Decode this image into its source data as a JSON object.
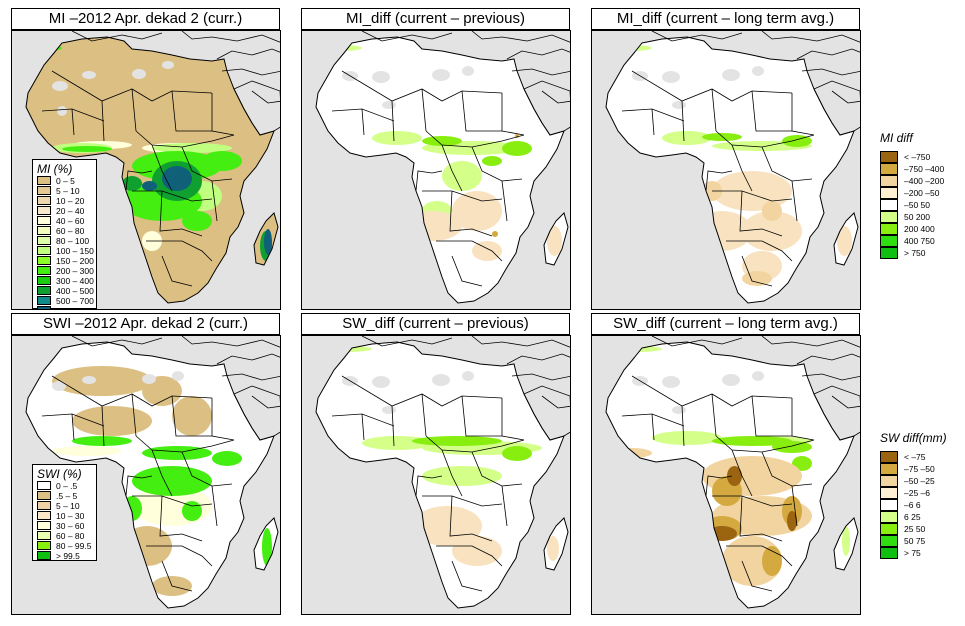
{
  "panels": [
    {
      "id": "mi-curr",
      "title": "MI –2012 Apr. dekad 2 (curr.)",
      "scheme": "mi"
    },
    {
      "id": "mi-diff-prev",
      "title": "MI_diff (current – previous)",
      "scheme": "midiffprev"
    },
    {
      "id": "mi-diff-lta",
      "title": "MI_diff (current – long term avg.)",
      "scheme": "midifflta"
    },
    {
      "id": "swi-curr",
      "title": "SWI –2012 Apr. dekad 2 (curr.)",
      "scheme": "swi"
    },
    {
      "id": "sw-diff-prev",
      "title": "SW_diff (current – previous)",
      "scheme": "swdiffprev"
    },
    {
      "id": "sw-diff-lta",
      "title": "SW_diff (current – long term avg.)",
      "scheme": "swdifflta"
    }
  ],
  "legends": {
    "mi": {
      "title": "MI (%)",
      "items": [
        {
          "label": "0 – 5",
          "color": "#dcbf83"
        },
        {
          "label": "5 – 10",
          "color": "#e4c994"
        },
        {
          "label": "10 – 20",
          "color": "#eed8ae"
        },
        {
          "label": "20 – 40",
          "color": "#f8e9cc"
        },
        {
          "label": "40 – 60",
          "color": "#ffffdc"
        },
        {
          "label": "60 – 80",
          "color": "#f2ffc0"
        },
        {
          "label": "80 – 100",
          "color": "#ddffaa"
        },
        {
          "label": "100 – 150",
          "color": "#c0ff80"
        },
        {
          "label": "150 – 200",
          "color": "#8cff28"
        },
        {
          "label": "200 – 300",
          "color": "#44ee10"
        },
        {
          "label": "300 – 400",
          "color": "#1ccc10"
        },
        {
          "label": "400 – 500",
          "color": "#10a030"
        },
        {
          "label": "500 – 700",
          "color": "#108a8a"
        },
        {
          "label": "> 700",
          "color": "#10607a"
        }
      ]
    },
    "swi": {
      "title": "SWI (%)",
      "items": [
        {
          "label": "0 – .5",
          "color": "#ffffff"
        },
        {
          "label": ".5 – 5",
          "color": "#dcbf83"
        },
        {
          "label": "5 – 10",
          "color": "#eed2a6"
        },
        {
          "label": "10 – 30",
          "color": "#fbe7c8"
        },
        {
          "label": "30 – 60",
          "color": "#ffffdc"
        },
        {
          "label": "60 – 80",
          "color": "#e8ffb0"
        },
        {
          "label": "80 – 99.5",
          "color": "#88ee10"
        },
        {
          "label": "> 99.5",
          "color": "#10c010"
        }
      ]
    },
    "mi_diff": {
      "title": "MI diff",
      "items": [
        {
          "label": "< –750",
          "color": "#9a6410"
        },
        {
          "label": "–750 –400",
          "color": "#d4aa40"
        },
        {
          "label": "–400 –200",
          "color": "#f2d4a0"
        },
        {
          "label": "–200 –50",
          "color": "#fff0d4"
        },
        {
          "label": "–50  50",
          "color": "#ffffff"
        },
        {
          "label": "50  200",
          "color": "#d4ff88"
        },
        {
          "label": "200  400",
          "color": "#88ee10"
        },
        {
          "label": "400  750",
          "color": "#30dd10"
        },
        {
          "label": "> 750",
          "color": "#10c010"
        }
      ]
    },
    "sw_diff": {
      "title": "SW diff(mm)",
      "items": [
        {
          "label": "< –75",
          "color": "#9a6410"
        },
        {
          "label": "–75 –50",
          "color": "#d4aa40"
        },
        {
          "label": "–50 –25",
          "color": "#f2d4a0"
        },
        {
          "label": "–25 –6",
          "color": "#fff0d4"
        },
        {
          "label": "–6  6",
          "color": "#ffffff"
        },
        {
          "label": "6  25",
          "color": "#d4ff88"
        },
        {
          "label": "25  50",
          "color": "#88ee10"
        },
        {
          "label": "50  75",
          "color": "#30dd10"
        },
        {
          "label": "> 75",
          "color": "#10c010"
        }
      ]
    }
  },
  "colors": {
    "ocean": "#e3e3e3",
    "no_data": "#dcdcdc",
    "border": "#000000"
  }
}
